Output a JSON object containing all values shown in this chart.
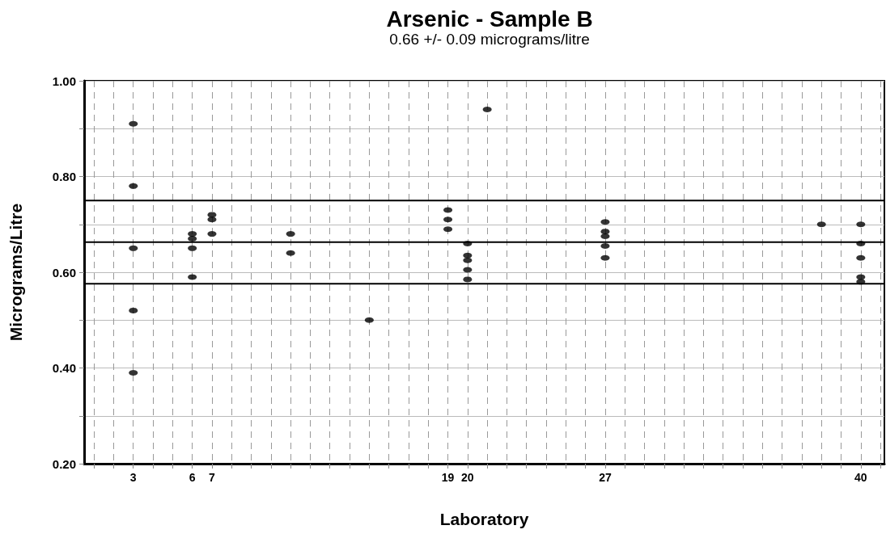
{
  "chart_data": {
    "type": "scatter",
    "title": "Arsenic - Sample B",
    "subtitle": "0.66 +/- 0.09 micrograms/litre",
    "xlabel": "Laboratory",
    "ylabel": "Micrograms/Litre",
    "x": [
      3,
      3,
      3,
      3,
      3,
      6,
      6,
      6,
      6,
      7,
      7,
      7,
      11,
      11,
      15,
      19,
      19,
      19,
      20,
      20,
      20,
      20,
      20,
      21,
      27,
      27,
      27,
      27,
      27,
      38,
      40,
      40,
      40,
      40,
      40
    ],
    "values": [
      0.91,
      0.78,
      0.65,
      0.52,
      0.39,
      0.68,
      0.67,
      0.65,
      0.59,
      0.72,
      0.71,
      0.68,
      0.68,
      0.64,
      0.5,
      0.73,
      0.71,
      0.69,
      0.66,
      0.635,
      0.625,
      0.605,
      0.585,
      0.94,
      0.705,
      0.685,
      0.675,
      0.655,
      0.63,
      0.7,
      0.7,
      0.66,
      0.63,
      0.59,
      0.58
    ],
    "color": "#000000",
    "marker": "circle",
    "xlim": [
      0.5,
      41.2
    ],
    "xticks": [
      {
        "value": 1,
        "label": null
      },
      {
        "value": 2,
        "label": null
      },
      3,
      {
        "value": 4,
        "label": null
      },
      {
        "value": 5,
        "label": null
      },
      6,
      7,
      {
        "value": 8,
        "label": null
      },
      {
        "value": 9,
        "label": null
      },
      {
        "value": 10,
        "label": null
      },
      {
        "value": 11,
        "label": null
      },
      {
        "value": 12,
        "label": null
      },
      {
        "value": 13,
        "label": null
      },
      {
        "value": 14,
        "label": null
      },
      {
        "value": 15,
        "label": null
      },
      {
        "value": 16,
        "label": null
      },
      {
        "value": 17,
        "label": null
      },
      {
        "value": 18,
        "label": null
      },
      19,
      20,
      {
        "value": 21,
        "label": null
      },
      {
        "value": 22,
        "label": null
      },
      {
        "value": 23,
        "label": null
      },
      {
        "value": 24,
        "label": null
      },
      {
        "value": 25,
        "label": null
      },
      {
        "value": 26,
        "label": null
      },
      27,
      {
        "value": 28,
        "label": null
      },
      {
        "value": 29,
        "label": null
      },
      {
        "value": 30,
        "label": null
      },
      {
        "value": 31,
        "label": null
      },
      {
        "value": 32,
        "label": null
      },
      {
        "value": 33,
        "label": null
      },
      {
        "value": 34,
        "label": null
      },
      {
        "value": 35,
        "label": null
      },
      {
        "value": 36,
        "label": null
      },
      {
        "value": 37,
        "label": null
      },
      {
        "value": 38,
        "label": null
      },
      {
        "value": 39,
        "label": null
      },
      40,
      {
        "value": 41,
        "label": null
      }
    ],
    "ylim": [
      0.2,
      1.0
    ],
    "yticks": [
      {
        "value": 0.2,
        "label": "0.20"
      },
      {
        "value": 0.3,
        "label": null
      },
      {
        "value": 0.4,
        "label": "0.40"
      },
      {
        "value": 0.5,
        "label": null
      },
      {
        "value": 0.6,
        "label": "0.60"
      },
      {
        "value": 0.7,
        "label": null
      },
      {
        "value": 0.8,
        "label": "0.80"
      },
      {
        "value": 0.9,
        "label": null
      },
      {
        "value": 1.0,
        "label": "1.00"
      }
    ],
    "grid": true,
    "ref_lines": [
      {
        "axis": "y",
        "value": 0.75,
        "color": "#000000"
      },
      {
        "axis": "y",
        "value": 0.663,
        "color": "#000000"
      },
      {
        "axis": "y",
        "value": 0.576,
        "color": "#000000"
      }
    ]
  }
}
